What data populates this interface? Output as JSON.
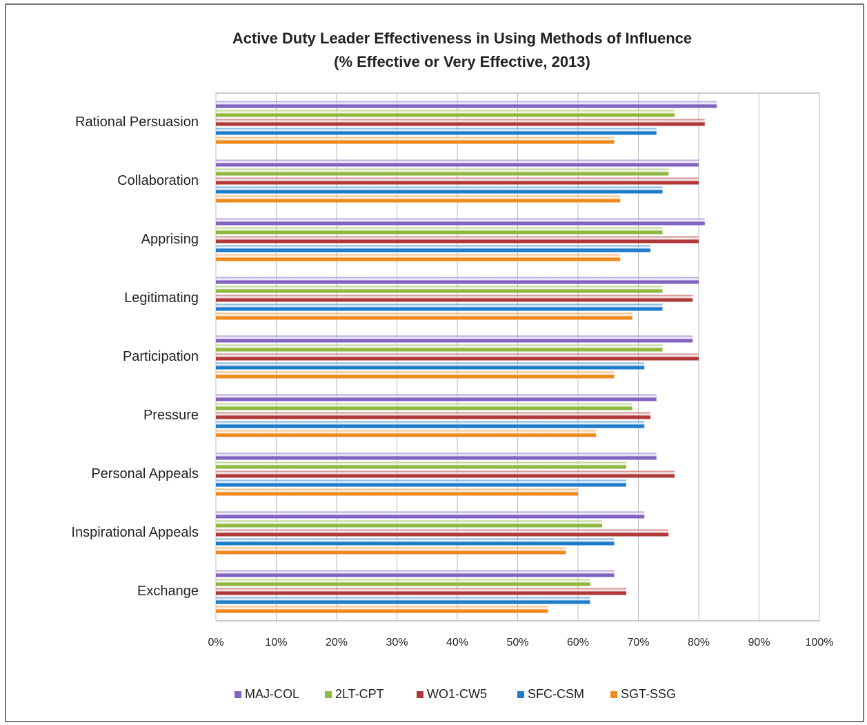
{
  "chart_data": {
    "type": "barh",
    "title": "Active Duty Leader Effectiveness in Using Methods of Influence",
    "subtitle": "(% Effective or Very Effective, 2013)",
    "categories": [
      "Rational Persuasion",
      "Collaboration",
      "Apprising",
      "Legitimating",
      "Participation",
      "Pressure",
      "Personal Appeals",
      "Inspirational Appeals",
      "Exchange"
    ],
    "series": [
      {
        "name": "MAJ-COL",
        "color": "#8064c0",
        "values": [
          83,
          80,
          81,
          80,
          79,
          73,
          73,
          71,
          66
        ]
      },
      {
        "name": "2LT-CPT",
        "color": "#8fb83e",
        "values": [
          76,
          75,
          74,
          74,
          74,
          69,
          68,
          64,
          62
        ]
      },
      {
        "name": "WO1-CW5",
        "color": "#b03838",
        "values": [
          81,
          80,
          80,
          79,
          80,
          72,
          76,
          75,
          68
        ]
      },
      {
        "name": "SFC-CSM",
        "color": "#1e7ccc",
        "values": [
          73,
          74,
          72,
          74,
          71,
          71,
          68,
          66,
          62
        ]
      },
      {
        "name": "SGT-SSG",
        "color": "#f08a1e",
        "values": [
          66,
          67,
          67,
          69,
          66,
          63,
          60,
          58,
          55
        ]
      }
    ],
    "xlim": [
      0,
      100
    ],
    "xticks": [
      {
        "value": 0,
        "label": "0%"
      },
      {
        "value": 10,
        "label": "10%"
      },
      {
        "value": 20,
        "label": "20%"
      },
      {
        "value": 30,
        "label": "30%"
      },
      {
        "value": 40,
        "label": "40%"
      },
      {
        "value": 50,
        "label": "50%"
      },
      {
        "value": 60,
        "label": "60%"
      },
      {
        "value": 70,
        "label": "70%"
      },
      {
        "value": 80,
        "label": "80%"
      },
      {
        "value": 90,
        "label": "90%"
      },
      {
        "value": 100,
        "label": "100%"
      }
    ],
    "grid": true,
    "legend": "bottom"
  }
}
